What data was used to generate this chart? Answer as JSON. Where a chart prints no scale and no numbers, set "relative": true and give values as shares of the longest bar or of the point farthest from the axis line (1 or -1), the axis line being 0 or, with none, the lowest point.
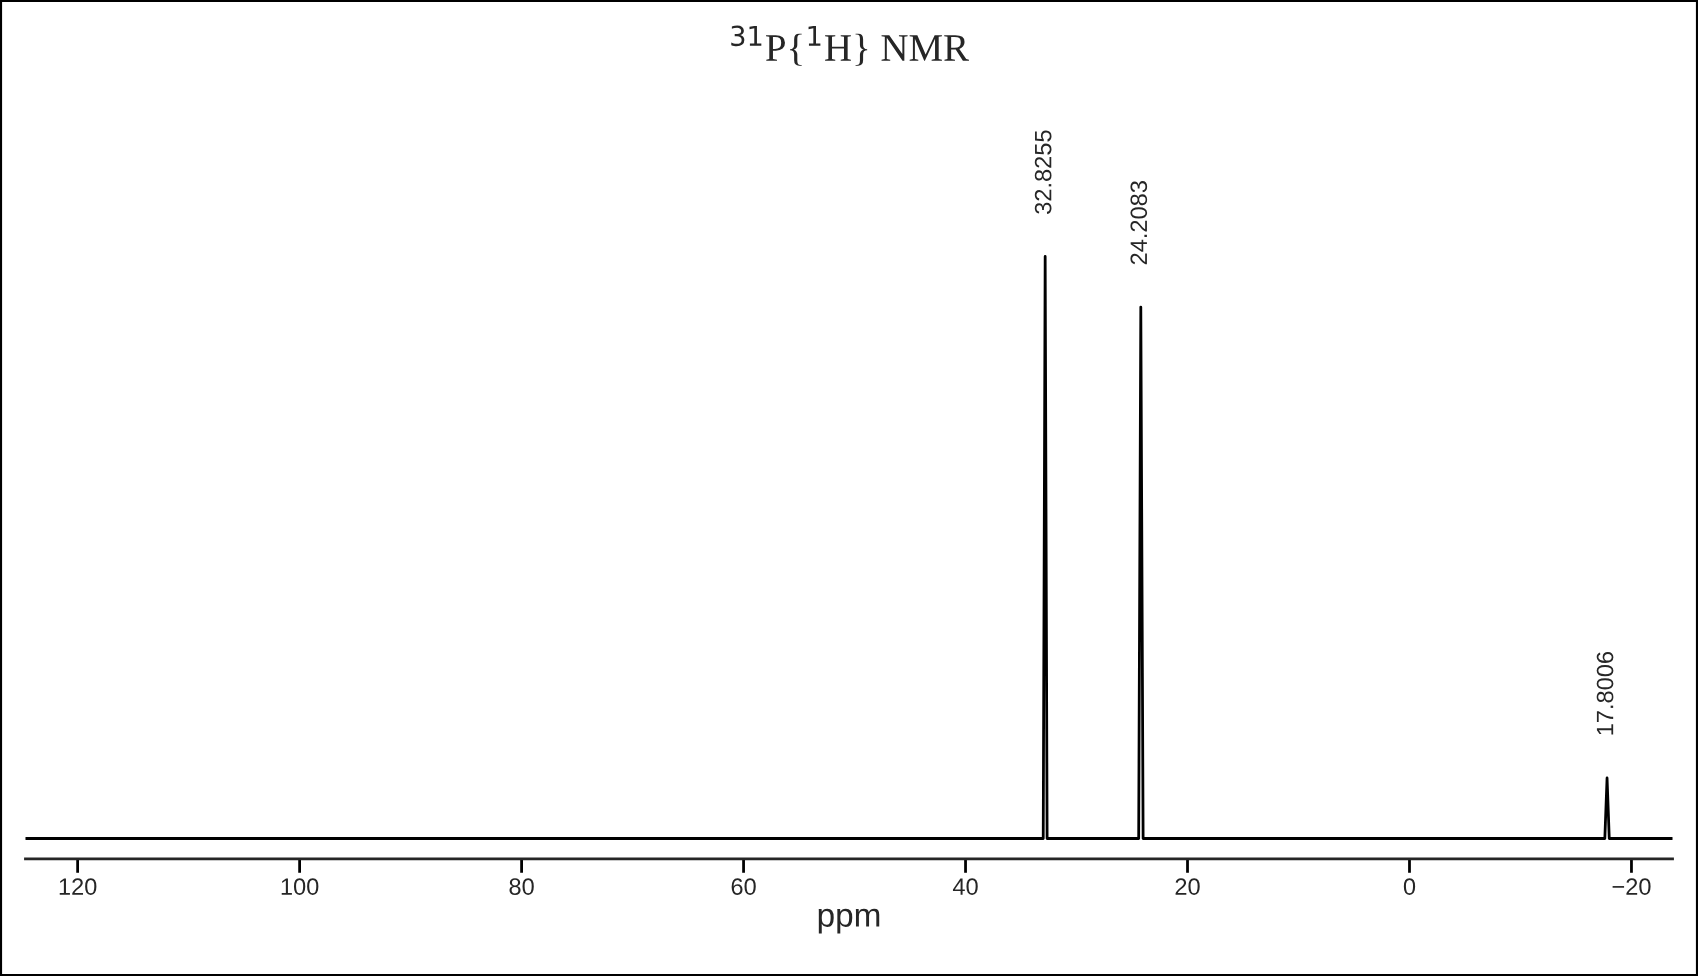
{
  "chart_data": {
    "type": "line",
    "title": "$^{31}$P{$^{1}$H} NMR",
    "xlabel": "ppm",
    "relative": true,
    "x": [
      124.7,
      33.0,
      32.8255,
      32.65,
      24.4,
      24.2083,
      24.0,
      -17.6,
      -17.8006,
      -18.0,
      -23.7
    ],
    "series": [
      {
        "color": "#000000",
        "values": [
          0,
          0,
          1,
          0,
          0,
          0.913,
          0,
          0,
          0.104,
          0,
          0
        ]
      }
    ],
    "annotations": [
      {
        "text": "32.8255",
        "x": 32.8255,
        "y": 1
      },
      {
        "text": "24.2083",
        "x": 24.2083,
        "y": 0.913
      },
      {
        "text": "17.8006",
        "x": -17.8006,
        "y": 0.104
      }
    ],
    "xlim": [
      124.7,
      -23.7
    ],
    "xticks": [
      {
        "value": 120,
        "label": "120"
      },
      {
        "value": 100,
        "label": "100"
      },
      {
        "value": 80,
        "label": "80"
      },
      {
        "value": 60,
        "label": "60"
      },
      {
        "value": 40,
        "label": "40"
      },
      {
        "value": 20,
        "label": "20"
      },
      {
        "value": 0,
        "label": "0"
      },
      {
        "value": -20,
        "label": "−20"
      }
    ],
    "grid": false,
    "legend": false,
    "marker": "none",
    "line_style": "solid"
  }
}
